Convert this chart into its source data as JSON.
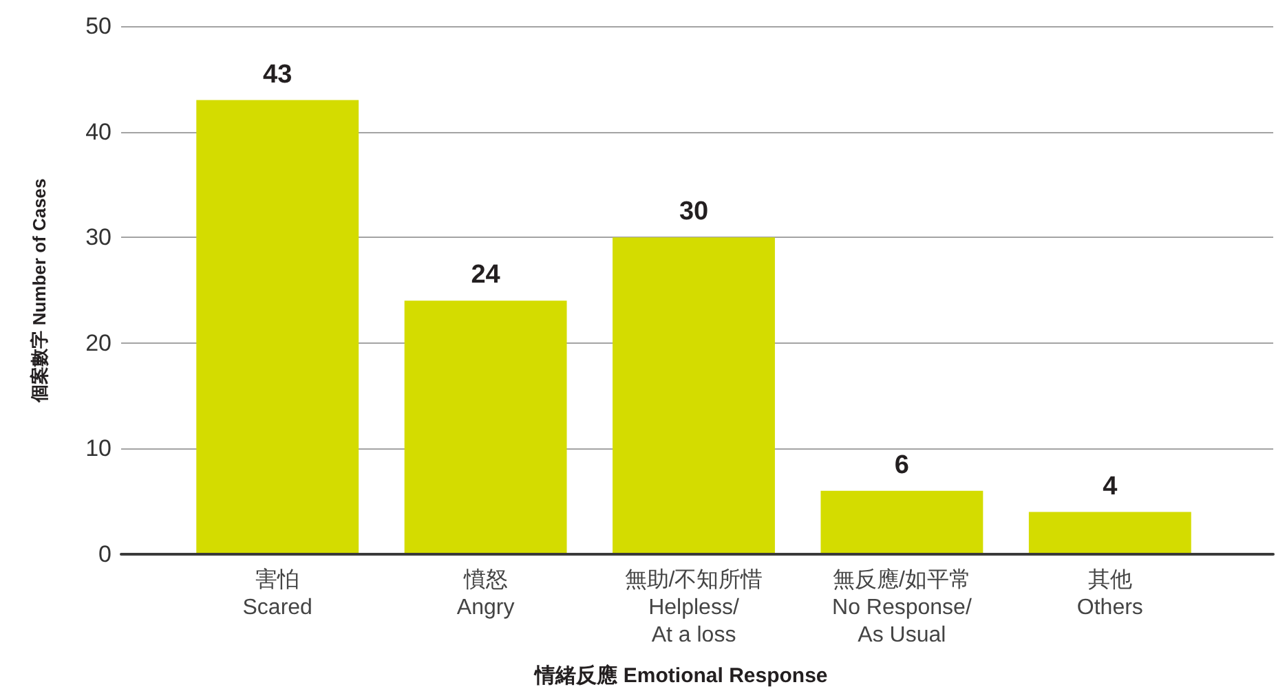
{
  "chart_data": {
    "type": "bar",
    "xlabel": "情緒反應 Emotional Response",
    "ylabel": "個案數字 Number of Cases",
    "categories": [
      "害怕\nScared",
      "憤怒\nAngry",
      "無助/不知所惜\nHelpless/\nAt a loss",
      "無反應/如平常\nNo Response/\nAs Usual",
      "其他\nOthers"
    ],
    "values": [
      43,
      24,
      30,
      6,
      4
    ],
    "color": "#d4dc00",
    "ylim": [
      0,
      50
    ],
    "yticks": [
      0,
      10,
      20,
      30,
      40,
      50
    ],
    "grid": "y",
    "data_labels": true
  }
}
